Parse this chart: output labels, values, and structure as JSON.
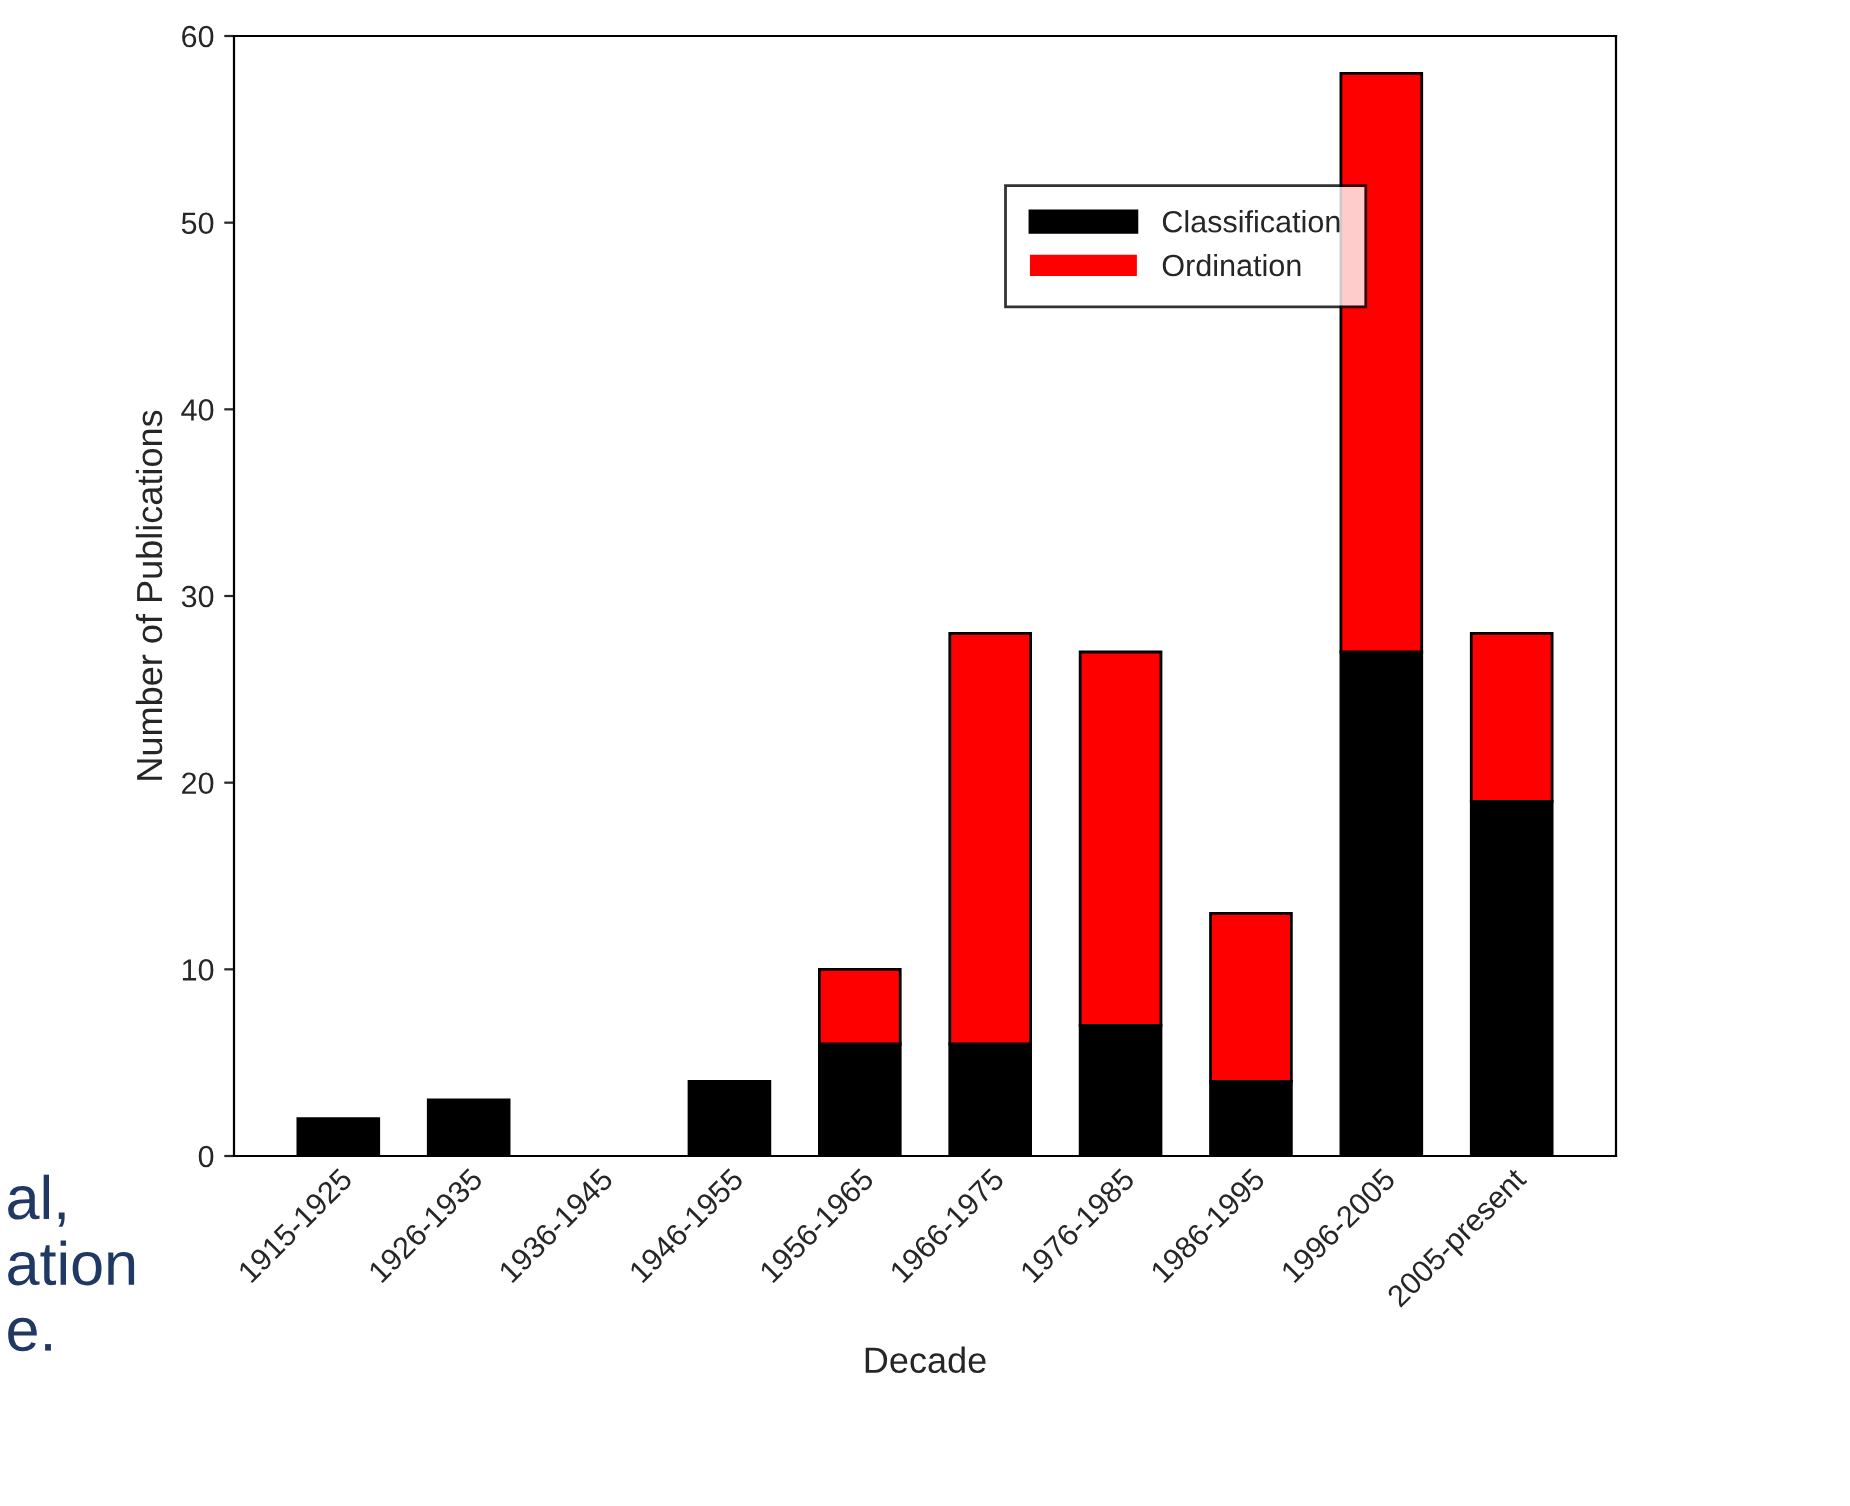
{
  "chart_data": {
    "type": "bar",
    "stacked": true,
    "xlabel": "Decade",
    "ylabel": "Number of Publications",
    "categories": [
      "1915-1925",
      "1926-1935",
      "1936-1945",
      "1946-1955",
      "1956-1965",
      "1966-1975",
      "1976-1985",
      "1986-1995",
      "1996-2005",
      "2005-present"
    ],
    "series": [
      {
        "name": "Classification",
        "color": "#000000",
        "values": [
          2,
          3,
          0,
          4,
          6,
          6,
          7,
          4,
          27,
          19
        ]
      },
      {
        "name": "Ordination",
        "color": "#ff0000",
        "values": [
          0,
          0,
          0,
          0,
          4,
          22,
          20,
          9,
          31,
          9
        ]
      }
    ],
    "ylim": [
      0,
      60
    ],
    "yticks": [
      0,
      10,
      20,
      30,
      40,
      50,
      60
    ],
    "grid": false,
    "legend": "top right",
    "annotations": [
      "al,\nation\ne."
    ]
  }
}
